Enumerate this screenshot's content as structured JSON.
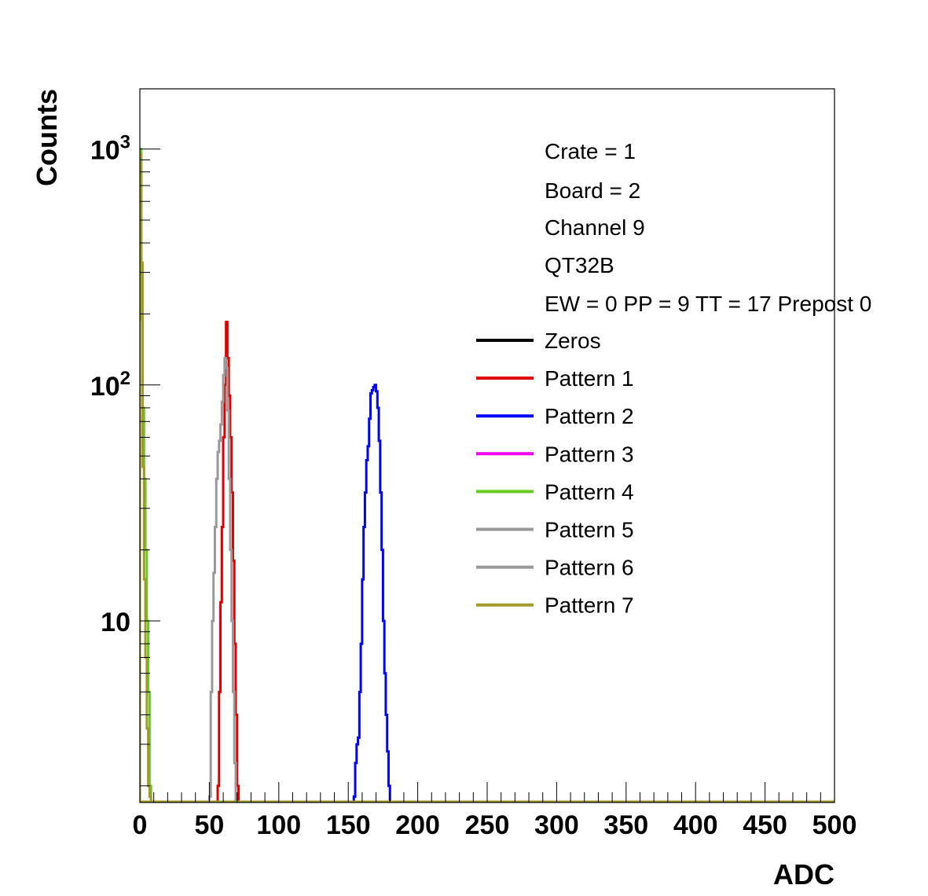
{
  "chart_data": {
    "type": "line",
    "xlabel": "ADC",
    "ylabel": "Counts",
    "xlim": [
      0,
      500
    ],
    "ylog": true,
    "ylim": [
      1.7,
      1800
    ],
    "grid": false,
    "legend_position": "top-right",
    "x_ticks": [
      "0",
      "50",
      "100",
      "150",
      "200",
      "250",
      "300",
      "350",
      "400",
      "450",
      "500"
    ],
    "y_ticks": [
      {
        "value": 10,
        "base": "10",
        "exp": ""
      },
      {
        "value": 100,
        "base": "10",
        "exp": "2"
      },
      {
        "value": 1000,
        "base": "10",
        "exp": "3"
      }
    ],
    "info_lines": [
      "Crate = 1",
      "Board = 2",
      "Channel 9",
      "QT32B",
      "EW = 0 PP = 9 TT = 17 Prepost 0"
    ],
    "series": [
      {
        "name": "Zeros",
        "color": "#000000",
        "x": [],
        "y": []
      },
      {
        "name": "Pattern 1",
        "color": "#e00000",
        "x": [
          56,
          57,
          58,
          59,
          60,
          61,
          62,
          63,
          64,
          65,
          66,
          67,
          68,
          69,
          70,
          71
        ],
        "y": [
          2,
          5,
          12,
          25,
          60,
          100,
          185,
          130,
          90,
          60,
          35,
          18,
          8,
          4,
          2,
          1.7
        ]
      },
      {
        "name": "Pattern 2",
        "color": "#0000ff",
        "x": [
          154,
          155,
          156,
          157,
          158,
          159,
          160,
          161,
          162,
          163,
          164,
          165,
          166,
          167,
          168,
          169,
          170,
          171,
          172,
          173,
          174,
          175,
          176,
          177,
          178,
          179,
          180
        ],
        "y": [
          1.8,
          2.5,
          3,
          3.2,
          5,
          8,
          15,
          25,
          35,
          48,
          55,
          72,
          92,
          95,
          98,
          100,
          94,
          80,
          58,
          35,
          20,
          10,
          6,
          4,
          2.8,
          2,
          1.7
        ]
      },
      {
        "name": "Pattern 3",
        "color": "#ee00ee",
        "x": [],
        "y": []
      },
      {
        "name": "Pattern 4",
        "color": "#66cc22",
        "x": [
          0,
          1,
          2,
          3,
          4,
          5,
          6,
          7
        ],
        "y": [
          1000,
          190,
          80,
          40,
          20,
          10,
          5,
          2
        ]
      },
      {
        "name": "Pattern 5",
        "color": "#999999",
        "x": [
          50,
          51,
          52,
          53,
          54,
          55,
          56,
          57,
          58,
          59,
          60,
          61,
          62,
          63,
          64,
          65,
          66,
          67,
          68,
          69
        ],
        "y": [
          1.8,
          5,
          10,
          16,
          25,
          40,
          52,
          58,
          68,
          85,
          110,
          130,
          118,
          78,
          40,
          20,
          10,
          5,
          2.5,
          1.7
        ]
      },
      {
        "name": "Pattern 6",
        "color": "#999999",
        "x": [],
        "y": []
      },
      {
        "name": "Pattern 7",
        "color": "#a09a28",
        "x": [
          0,
          1,
          2,
          3,
          4,
          5,
          6,
          7
        ],
        "y": [
          950,
          330,
          45,
          15,
          7,
          3.5,
          2,
          1.8
        ]
      }
    ]
  }
}
